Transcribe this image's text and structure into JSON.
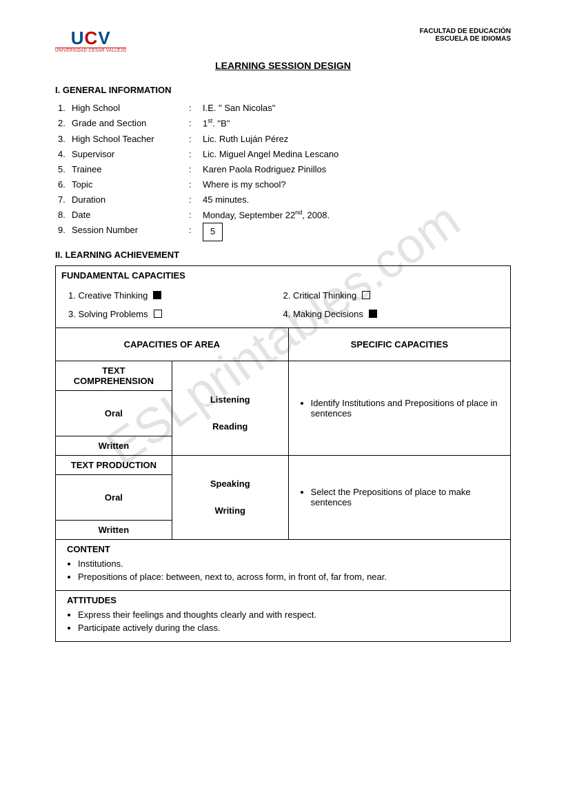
{
  "header": {
    "logo_letters": [
      "U",
      "C",
      "V"
    ],
    "logo_subtitle": "UNIVERSIDAD CESAR VALLEJO",
    "faculty_line1": "FACULTAD DE EDUCACIÓN",
    "faculty_line2": "ESCUELA DE IDIOMAS"
  },
  "title": "LEARNING SESSION DESIGN",
  "section1_title": "I. GENERAL INFORMATION",
  "general_info": [
    {
      "num": "1.",
      "label": "High School",
      "value": "I.E. \" San Nicolas\""
    },
    {
      "num": "2.",
      "label": "Grade and Section",
      "value_html": "1<sup>st</sup>. \"B\""
    },
    {
      "num": "3.",
      "label": "High School Teacher",
      "value": "Lic. Ruth Luján Pérez"
    },
    {
      "num": "4.",
      "label": "Supervisor",
      "value": "Lic. Miguel Angel Medina Lescano"
    },
    {
      "num": "5.",
      "label": "Trainee",
      "value": "Karen Paola Rodriguez Pinillos"
    },
    {
      "num": "6.",
      "label": "Topic",
      "value": "Where is my school?"
    },
    {
      "num": "7.",
      "label": "Duration",
      "value": "45 minutes."
    },
    {
      "num": "8.",
      "label": "Date",
      "value_html": "Monday, September 22<sup>nd</sup>, 2008."
    },
    {
      "num": "9.",
      "label": "Session Number",
      "boxed": "5"
    }
  ],
  "section2_title": "II.  LEARNING ACHIEVEMENT",
  "fundamental": {
    "title": "FUNDAMENTAL CAPACITIES",
    "items": [
      {
        "label": "1. Creative Thinking",
        "checked": true
      },
      {
        "label": "2. Critical Thinking",
        "checked": false
      },
      {
        "label": "3. Solving Problems",
        "checked": false
      },
      {
        "label": "4. Making Decisions",
        "checked": true
      }
    ]
  },
  "col_headers": {
    "area": "CAPACITIES OF AREA",
    "specific": "SPECIFIC CAPACITIES"
  },
  "comprehension": {
    "title": "TEXT COMPREHENSION",
    "oral": "Oral",
    "written": "Written",
    "listening": "Listening",
    "reading": "Reading",
    "specific": "Identify Institutions and Prepositions of place in sentences"
  },
  "production": {
    "title": "TEXT PRODUCTION",
    "oral": "Oral",
    "written": "Written",
    "speaking": "Speaking",
    "writing": "Writing",
    "specific": "Select the Prepositions of place to make sentences"
  },
  "content": {
    "title": "CONTENT",
    "items": [
      "Institutions.",
      "Prepositions of place: between, next to, across form, in front of, far from, near."
    ]
  },
  "attitudes": {
    "title": "ATTITUDES",
    "items": [
      "Express their feelings and thoughts clearly and with respect.",
      "Participate actively during the class."
    ]
  },
  "watermark": "ESLprintables.com"
}
